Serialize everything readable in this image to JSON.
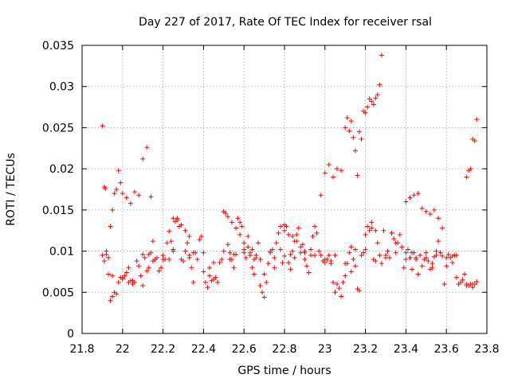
{
  "chart_data": {
    "type": "scatter",
    "title": "Day 227 of 2017, Rate Of TEC Index for receiver rsal",
    "xlabel": "GPS time / hours",
    "ylabel": "ROTI / TECUs",
    "xlim": [
      21.8,
      23.8
    ],
    "ylim": [
      0,
      0.035
    ],
    "xticks": [
      "21.8",
      "22",
      "22.2",
      "22.4",
      "22.6",
      "22.8",
      "23",
      "23.2",
      "23.4",
      "23.6",
      "23.8"
    ],
    "yticks": [
      "0",
      "0.005",
      "0.01",
      "0.015",
      "0.02",
      "0.025",
      "0.03",
      "0.035"
    ],
    "grid": true,
    "marker": "plus",
    "color": "#ff0000",
    "series": [
      {
        "x": [
          21.9,
          21.91,
          21.915,
          21.92,
          21.93,
          21.94,
          21.95,
          21.96,
          21.97,
          21.98,
          21.99,
          22.0,
          22.02,
          22.04,
          22.06,
          22.08,
          22.1,
          22.12,
          22.14,
          21.9,
          21.91,
          21.92,
          21.93,
          21.94,
          21.95,
          21.96,
          21.97,
          21.98,
          21.99,
          22.0,
          22.01,
          22.02,
          22.03,
          22.04,
          22.05,
          22.06,
          22.07,
          22.08,
          22.09,
          22.1,
          22.11,
          22.12,
          22.13,
          22.14,
          22.15,
          22.16,
          22.17,
          22.18,
          22.19,
          22.2,
          22.21,
          22.22,
          22.23,
          22.24,
          22.25,
          22.26,
          22.27,
          22.28,
          22.29,
          22.3,
          22.31,
          22.32,
          22.33,
          22.34,
          22.35,
          22.36,
          22.37,
          22.38,
          22.39,
          22.4,
          22.41,
          22.42,
          22.43,
          22.44,
          22.45,
          22.46,
          22.47,
          22.48,
          22.49,
          22.5,
          22.51,
          22.52,
          22.53,
          22.54,
          22.55,
          22.56,
          22.57,
          22.58,
          22.59,
          22.6,
          22.61,
          22.62,
          22.63,
          22.64,
          22.65,
          22.66,
          22.67,
          22.68,
          22.69,
          22.7,
          22.71,
          22.72,
          22.73,
          22.74,
          22.75,
          22.76,
          22.77,
          22.78,
          22.79,
          22.8,
          22.81,
          22.82,
          22.83,
          22.84,
          22.85,
          22.86,
          22.87,
          22.88,
          22.89,
          22.9,
          22.91,
          22.92,
          22.93,
          22.94,
          22.95,
          22.96,
          22.97,
          22.98,
          22.99,
          23.0,
          23.01,
          23.02,
          23.03,
          23.04,
          23.05,
          23.06,
          23.07,
          23.08,
          23.09,
          23.1,
          23.11,
          23.12,
          23.13,
          23.14,
          23.15,
          23.16,
          23.17,
          23.18,
          23.19,
          23.2,
          23.21,
          23.22,
          23.23,
          23.24,
          23.25,
          23.26,
          23.27,
          23.28,
          23.29,
          23.3,
          23.31,
          23.32,
          23.33,
          23.34,
          23.35,
          23.36,
          23.37,
          23.38,
          23.39,
          23.4,
          23.41,
          23.42,
          23.43,
          23.44,
          23.45,
          23.46,
          23.47,
          23.48,
          23.49,
          23.5,
          23.51,
          23.52,
          23.53,
          23.54,
          23.55,
          23.56,
          23.57,
          23.58,
          23.59,
          23.6,
          23.61,
          23.62,
          23.63,
          23.64,
          23.65,
          23.66,
          23.67,
          23.68,
          23.69,
          23.7,
          23.71,
          23.72,
          23.73,
          23.74,
          23.75,
          22.0,
          22.05,
          22.1,
          22.15,
          22.2,
          22.25,
          22.3,
          22.35,
          22.4,
          22.45,
          22.5,
          22.55,
          22.6,
          22.65,
          22.7,
          22.75,
          22.8,
          22.85,
          22.9,
          22.95,
          23.0,
          23.05,
          23.1,
          23.15,
          23.2,
          23.25,
          23.3,
          23.35,
          23.4,
          23.45,
          23.5,
          23.55,
          23.6,
          23.65,
          23.7,
          21.95,
          22.03,
          22.13,
          22.23,
          22.33,
          22.43,
          22.53,
          22.63,
          22.73,
          22.83,
          22.93,
          23.03,
          23.13,
          23.23,
          23.33,
          23.43,
          23.53,
          23.63,
          23.73,
          22.98,
          23.0,
          23.02,
          23.04,
          23.06,
          23.08,
          23.1,
          23.11,
          23.12,
          23.13,
          23.14,
          23.15,
          23.16,
          23.17,
          23.18,
          23.19,
          23.2,
          23.21,
          23.22,
          23.23,
          23.24,
          23.25,
          23.26,
          23.27,
          23.28,
          23.4,
          23.42,
          23.44,
          23.46,
          23.48,
          23.5,
          23.52,
          23.54,
          23.56,
          23.58,
          23.7,
          23.71,
          23.72,
          23.73,
          23.74,
          23.75,
          22.25,
          22.27,
          22.29,
          22.31,
          22.33,
          22.78,
          22.8,
          22.82,
          22.84,
          22.86,
          22.88,
          22.9,
          22.5,
          22.52,
          22.54,
          22.56,
          22.58,
          22.6,
          22.62,
          22.64,
          22.66,
          22.68
        ],
        "y": [
          0.0252,
          0.0178,
          0.0176,
          0.0096,
          0.0092,
          0.013,
          0.015,
          0.017,
          0.0175,
          0.0198,
          0.0183,
          0.017,
          0.0165,
          0.0158,
          0.0172,
          0.0168,
          0.0212,
          0.0226,
          0.0166,
          0.0095,
          0.0088,
          0.01,
          0.0072,
          0.004,
          0.0045,
          0.005,
          0.0048,
          0.0062,
          0.0068,
          0.0066,
          0.007,
          0.0074,
          0.008,
          0.0064,
          0.006,
          0.0062,
          0.0088,
          0.0082,
          0.007,
          0.0058,
          0.0092,
          0.0076,
          0.008,
          0.0098,
          0.0112,
          0.009,
          0.0092,
          0.0076,
          0.008,
          0.0095,
          0.009,
          0.011,
          0.0124,
          0.0112,
          0.01,
          0.0136,
          0.014,
          0.013,
          0.009,
          0.0088,
          0.01,
          0.011,
          0.0092,
          0.008,
          0.0062,
          0.0098,
          0.009,
          0.0114,
          0.0118,
          0.0075,
          0.0062,
          0.0056,
          0.007,
          0.0064,
          0.0066,
          0.0068,
          0.0062,
          0.0086,
          0.009,
          0.0148,
          0.0146,
          0.0108,
          0.0098,
          0.009,
          0.008,
          0.0096,
          0.014,
          0.0135,
          0.013,
          0.0098,
          0.0092,
          0.0118,
          0.0095,
          0.008,
          0.0072,
          0.0092,
          0.011,
          0.0058,
          0.005,
          0.0044,
          0.0062,
          0.0085,
          0.0098,
          0.0102,
          0.0092,
          0.011,
          0.0122,
          0.0102,
          0.0086,
          0.0132,
          0.013,
          0.0086,
          0.0078,
          0.01,
          0.0112,
          0.012,
          0.0128,
          0.0098,
          0.0108,
          0.009,
          0.0082,
          0.0074,
          0.0102,
          0.0118,
          0.013,
          0.0122,
          0.01,
          0.0095,
          0.0088,
          0.0086,
          0.009,
          0.0095,
          0.0085,
          0.0062,
          0.005,
          0.006,
          0.0055,
          0.0045,
          0.0062,
          0.007,
          0.0085,
          0.0098,
          0.0075,
          0.009,
          0.0102,
          0.0054,
          0.0052,
          0.0095,
          0.0098,
          0.012,
          0.013,
          0.0125,
          0.0135,
          0.009,
          0.0088,
          0.011,
          0.0095,
          0.0085,
          0.0125,
          0.0095,
          0.01,
          0.0092,
          0.0122,
          0.0115,
          0.0098,
          0.011,
          0.012,
          0.0105,
          0.008,
          0.009,
          0.0102,
          0.0092,
          0.0078,
          0.0098,
          0.0092,
          0.0072,
          0.0095,
          0.0082,
          0.009,
          0.0098,
          0.0088,
          0.0078,
          0.0085,
          0.0093,
          0.01,
          0.0112,
          0.0098,
          0.0094,
          0.006,
          0.0082,
          0.0096,
          0.0092,
          0.0086,
          0.0095,
          0.0068,
          0.006,
          0.0062,
          0.0065,
          0.0072,
          0.006,
          0.0058,
          0.006,
          0.0056,
          0.006,
          0.0063,
          0.0068,
          0.0064,
          0.0096,
          0.0088,
          0.009,
          0.0102,
          0.0088,
          0.0098,
          0.0098,
          0.0086,
          0.01,
          0.0096,
          0.0102,
          0.009,
          0.0072,
          0.008,
          0.0094,
          0.0092,
          0.0098,
          0.0095,
          0.009,
          0.0095,
          0.0085,
          0.0082,
          0.0102,
          0.0125,
          0.0092,
          0.011,
          0.0098,
          0.009,
          0.0092,
          0.0095,
          0.0092,
          0.0095,
          0.0058,
          0.007,
          0.0062,
          0.0096,
          0.009,
          0.0095,
          0.008,
          0.009,
          0.0098,
          0.01,
          0.0096,
          0.0095,
          0.0088,
          0.0105,
          0.0128,
          0.0122,
          0.0098,
          0.008,
          0.0094,
          0.006,
          0.0168,
          0.0195,
          0.0205,
          0.019,
          0.02,
          0.0198,
          0.025,
          0.0262,
          0.0246,
          0.0258,
          0.0238,
          0.0222,
          0.0192,
          0.0245,
          0.0236,
          0.027,
          0.0268,
          0.0275,
          0.0285,
          0.0282,
          0.0278,
          0.0286,
          0.029,
          0.0302,
          0.0338,
          0.016,
          0.0165,
          0.0168,
          0.017,
          0.0152,
          0.0148,
          0.0145,
          0.015,
          0.014,
          0.0128,
          0.019,
          0.0198,
          0.02,
          0.0236,
          0.0234,
          0.026,
          0.014,
          0.0138,
          0.0132,
          0.0125,
          0.0118,
          0.013,
          0.0125,
          0.012,
          0.0118,
          0.0112,
          0.0105,
          0.01,
          0.0148,
          0.0142,
          0.0135,
          0.0128,
          0.012,
          0.011,
          0.0105,
          0.0102,
          0.0095,
          0.009
        ]
      }
    ]
  }
}
